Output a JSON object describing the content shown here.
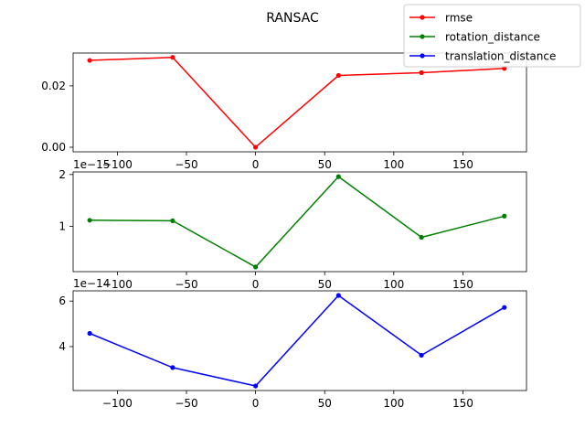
{
  "chart_data": {
    "type": "line",
    "title": "RANSAC",
    "legend": {
      "placement": "top-right",
      "entries": [
        "rmse",
        "rotation_distance",
        "translation_distance"
      ]
    },
    "x_ticks": [
      "−100",
      "−50",
      "0",
      "50",
      "100",
      "150"
    ],
    "x_tick_values": [
      -100,
      -50,
      0,
      50,
      100,
      150
    ],
    "xlim": [
      -132,
      196
    ],
    "grid": false,
    "subplots": [
      {
        "series_name": "rmse",
        "color": "#ff0000",
        "x": [
          -120,
          -60,
          0,
          60,
          120,
          180
        ],
        "y": [
          0.0283,
          0.0293,
          0.0,
          0.0234,
          0.0243,
          0.0257
        ],
        "ylim": [
          -0.0015,
          0.0307
        ],
        "y_tick_values": [
          0.0,
          0.02
        ],
        "y_ticks": [
          "0.00",
          "0.02"
        ],
        "offset_label": ""
      },
      {
        "series_name": "rotation_distance",
        "color": "#008000",
        "x": [
          -120,
          -60,
          0,
          60,
          120,
          180
        ],
        "y": [
          1.12,
          1.11,
          0.22,
          1.96,
          0.79,
          1.2
        ],
        "ylim": [
          0.13,
          2.05
        ],
        "y_tick_values": [
          1,
          2
        ],
        "y_ticks": [
          "1",
          "2"
        ],
        "offset_label": "1e−15"
      },
      {
        "series_name": "translation_distance",
        "color": "#0000ff",
        "x": [
          -120,
          -60,
          0,
          60,
          120,
          180
        ],
        "y": [
          4.58,
          3.08,
          2.27,
          6.25,
          3.62,
          5.72
        ],
        "ylim": [
          2.07,
          6.45
        ],
        "y_tick_values": [
          4,
          6
        ],
        "y_ticks": [
          "4",
          "6"
        ],
        "offset_label": "1e−14"
      }
    ]
  }
}
